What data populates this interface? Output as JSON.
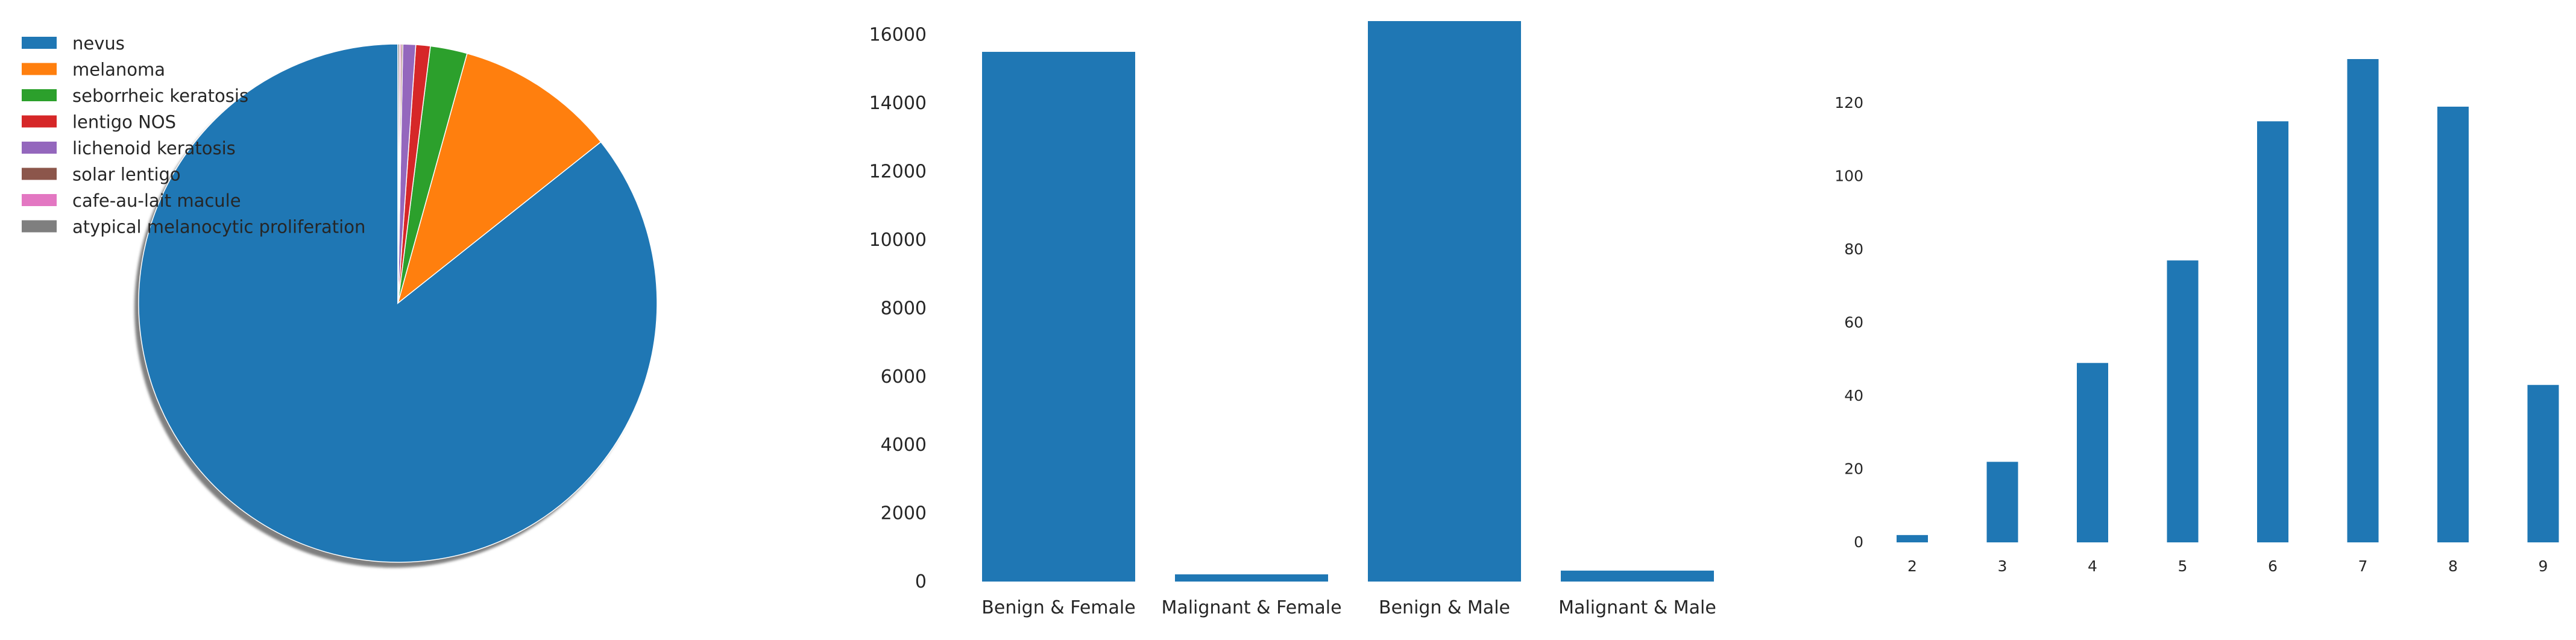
{
  "chart_data": [
    {
      "type": "pie",
      "legend_position": "top-left",
      "shadow": true,
      "slices": [
        {
          "label": "nevus",
          "value": 85.6,
          "color": "#1f77b4"
        },
        {
          "label": "melanoma",
          "value": 10.0,
          "color": "#ff7f0e"
        },
        {
          "label": "seborrheic keratosis",
          "value": 2.3,
          "color": "#2ca02c"
        },
        {
          "label": "lentigo NOS",
          "value": 0.9,
          "color": "#d62728"
        },
        {
          "label": "lichenoid keratosis",
          "value": 0.8,
          "color": "#9467bd"
        },
        {
          "label": "solar lentigo",
          "value": 0.1,
          "color": "#8c564b"
        },
        {
          "label": "cafe-au-lait macule",
          "value": 0.1,
          "color": "#e377c2"
        },
        {
          "label": "atypical melanocytic proliferation",
          "value": 0.1,
          "color": "#7f7f7f"
        }
      ]
    },
    {
      "type": "bar",
      "categories": [
        "Benign & Female",
        "Malignant & Female",
        "Benign & Male",
        "Malignant & Male"
      ],
      "values": [
        15500,
        210,
        16400,
        320
      ],
      "ylim": [
        0,
        16400
      ],
      "yticks": [
        0,
        2000,
        4000,
        6000,
        8000,
        10000,
        12000,
        14000,
        16000
      ],
      "color": "#1f77b4",
      "grid": false
    },
    {
      "type": "bar",
      "categories": [
        "2",
        "3",
        "4",
        "5",
        "6",
        "7",
        "8",
        "9"
      ],
      "values": [
        2,
        22,
        49,
        77,
        115,
        132,
        119,
        43
      ],
      "ylim": [
        0,
        132
      ],
      "yticks": [
        0,
        20,
        40,
        60,
        80,
        100,
        120
      ],
      "color": "#1f77b4",
      "grid": false
    }
  ]
}
